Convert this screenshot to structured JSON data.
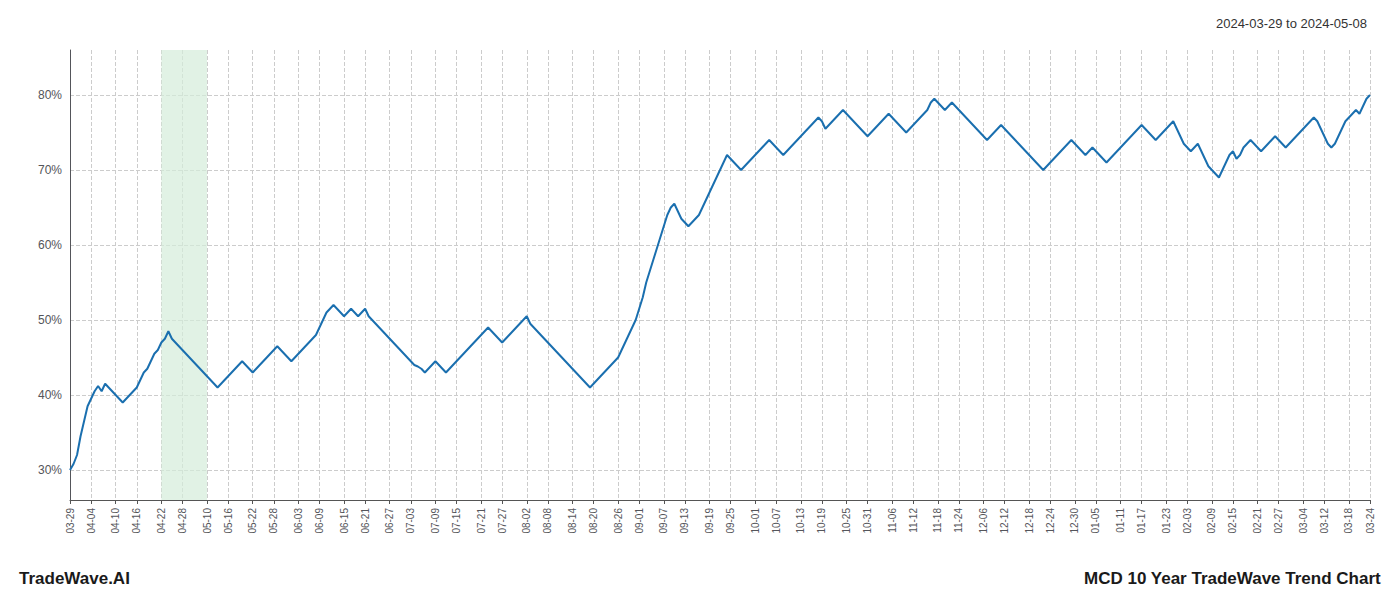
{
  "chart_data": {
    "type": "line",
    "title": "MCD 10 Year TradeWave Trend Chart",
    "subtitle": "2024-03-29 to 2024-05-08",
    "annotations": [
      "TradeWave.AI"
    ],
    "color": "#1a6faf",
    "grid": true,
    "highlight": {
      "start": "04-22",
      "end": "05-10",
      "color": "#d4edda"
    },
    "ylim": [
      26,
      86
    ],
    "yticks": [
      {
        "value": 30,
        "label": "30%"
      },
      {
        "value": 40,
        "label": "40%"
      },
      {
        "value": 50,
        "label": "50%"
      },
      {
        "value": 60,
        "label": "60%"
      },
      {
        "value": 70,
        "label": "70%"
      },
      {
        "value": 80,
        "label": "80%"
      }
    ],
    "categories": [
      "03-29",
      null,
      null,
      null,
      null,
      null,
      "04-04",
      null,
      null,
      null,
      null,
      null,
      null,
      "04-10",
      null,
      null,
      null,
      null,
      null,
      "04-16",
      null,
      null,
      null,
      null,
      null,
      null,
      "04-22",
      null,
      null,
      null,
      null,
      null,
      "04-28",
      null,
      null,
      null,
      null,
      null,
      null,
      "05-10",
      null,
      null,
      null,
      null,
      null,
      "05-16",
      null,
      null,
      null,
      null,
      null,
      null,
      "05-22",
      null,
      null,
      null,
      null,
      null,
      "05-28",
      null,
      null,
      null,
      null,
      null,
      null,
      "06-03",
      null,
      null,
      null,
      null,
      null,
      "06-09",
      null,
      null,
      null,
      null,
      null,
      null,
      "06-15",
      null,
      null,
      null,
      null,
      null,
      "06-21",
      null,
      null,
      null,
      null,
      null,
      null,
      "06-27",
      null,
      null,
      null,
      null,
      null,
      "07-03",
      null,
      null,
      null,
      null,
      null,
      null,
      "07-09",
      null,
      null,
      null,
      null,
      null,
      "07-15",
      null,
      null,
      null,
      null,
      null,
      null,
      "07-21",
      null,
      null,
      null,
      null,
      null,
      "07-27",
      null,
      null,
      null,
      null,
      null,
      null,
      "08-02",
      null,
      null,
      null,
      null,
      null,
      "08-08",
      null,
      null,
      null,
      null,
      null,
      null,
      "08-14",
      null,
      null,
      null,
      null,
      null,
      "08-20",
      null,
      null,
      null,
      null,
      null,
      null,
      "08-26",
      null,
      null,
      null,
      null,
      null,
      "09-01",
      null,
      null,
      null,
      null,
      null,
      null,
      "09-07",
      null,
      null,
      null,
      null,
      null,
      "09-13",
      null,
      null,
      null,
      null,
      null,
      null,
      "09-19",
      null,
      null,
      null,
      null,
      null,
      "09-25",
      null,
      null,
      null,
      null,
      null,
      null,
      "10-01",
      null,
      null,
      null,
      null,
      null,
      "10-07",
      null,
      null,
      null,
      null,
      null,
      null,
      "10-13",
      null,
      null,
      null,
      null,
      null,
      "10-19",
      null,
      null,
      null,
      null,
      null,
      null,
      "10-25",
      null,
      null,
      null,
      null,
      null,
      "10-31",
      null,
      null,
      null,
      null,
      null,
      null,
      "11-06",
      null,
      null,
      null,
      null,
      null,
      "11-12",
      null,
      null,
      null,
      null,
      null,
      null,
      "11-18",
      null,
      null,
      null,
      null,
      null,
      "11-24",
      null,
      null,
      null,
      null,
      null,
      null,
      "12-06",
      null,
      null,
      null,
      null,
      null,
      "12-12",
      null,
      null,
      null,
      null,
      null,
      null,
      "12-18",
      null,
      null,
      null,
      null,
      null,
      "12-24",
      null,
      null,
      null,
      null,
      null,
      null,
      "12-30",
      null,
      null,
      null,
      null,
      null,
      "01-05",
      null,
      null,
      null,
      null,
      null,
      null,
      "01-11",
      null,
      null,
      null,
      null,
      null,
      "01-17",
      null,
      null,
      null,
      null,
      null,
      null,
      "01-23",
      null,
      null,
      null,
      null,
      null,
      "02-03",
      null,
      null,
      null,
      null,
      null,
      null,
      "02-09",
      null,
      null,
      null,
      null,
      null,
      "02-15",
      null,
      null,
      null,
      null,
      null,
      null,
      "02-21",
      null,
      null,
      null,
      null,
      null,
      "02-27",
      null,
      null,
      null,
      null,
      null,
      null,
      "03-04",
      null,
      null,
      null,
      null,
      null,
      "03-12",
      null,
      null,
      null,
      null,
      null,
      null,
      "03-18",
      null,
      null,
      null,
      null,
      null,
      "03-24"
    ],
    "values": [
      30.0,
      30.8,
      32.0,
      34.5,
      36.5,
      38.5,
      39.5,
      40.5,
      41.2,
      40.5,
      41.5,
      41.0,
      40.5,
      40.0,
      39.5,
      39.0,
      39.5,
      40.0,
      40.5,
      41.0,
      42.0,
      43.0,
      43.5,
      44.5,
      45.5,
      46.0,
      47.0,
      47.5,
      48.5,
      47.5,
      47.0,
      46.5,
      46.0,
      45.5,
      45.0,
      44.5,
      44.0,
      43.5,
      43.0,
      42.5,
      42.0,
      41.5,
      41.0,
      41.5,
      42.0,
      42.5,
      43.0,
      43.5,
      44.0,
      44.5,
      44.0,
      43.5,
      43.0,
      43.5,
      44.0,
      44.5,
      45.0,
      45.5,
      46.0,
      46.5,
      46.0,
      45.5,
      45.0,
      44.5,
      45.0,
      45.5,
      46.0,
      46.5,
      47.0,
      47.5,
      48.0,
      49.0,
      50.0,
      51.0,
      51.5,
      52.0,
      51.5,
      51.0,
      50.5,
      51.0,
      51.5,
      51.0,
      50.5,
      51.0,
      51.5,
      50.5,
      50.0,
      49.5,
      49.0,
      48.5,
      48.0,
      47.5,
      47.0,
      46.5,
      46.0,
      45.5,
      45.0,
      44.5,
      44.0,
      43.8,
      43.5,
      43.0,
      43.5,
      44.0,
      44.5,
      44.0,
      43.5,
      43.0,
      43.5,
      44.0,
      44.5,
      45.0,
      45.5,
      46.0,
      46.5,
      47.0,
      47.5,
      48.0,
      48.5,
      49.0,
      48.5,
      48.0,
      47.5,
      47.0,
      47.5,
      48.0,
      48.5,
      49.0,
      49.5,
      50.0,
      50.5,
      49.5,
      49.0,
      48.5,
      48.0,
      47.5,
      47.0,
      46.5,
      46.0,
      45.5,
      45.0,
      44.5,
      44.0,
      43.5,
      43.0,
      42.5,
      42.0,
      41.5,
      41.0,
      41.5,
      42.0,
      42.5,
      43.0,
      43.5,
      44.0,
      44.5,
      45.0,
      46.0,
      47.0,
      48.0,
      49.0,
      50.0,
      51.5,
      53.0,
      55.0,
      56.5,
      58.0,
      59.5,
      61.0,
      62.5,
      64.0,
      65.0,
      65.5,
      64.5,
      63.5,
      63.0,
      62.5,
      63.0,
      63.5,
      64.0,
      65.0,
      66.0,
      67.0,
      68.0,
      69.0,
      70.0,
      71.0,
      72.0,
      71.5,
      71.0,
      70.5,
      70.0,
      70.5,
      71.0,
      71.5,
      72.0,
      72.5,
      73.0,
      73.5,
      74.0,
      73.5,
      73.0,
      72.5,
      72.0,
      72.5,
      73.0,
      73.5,
      74.0,
      74.5,
      75.0,
      75.5,
      76.0,
      76.5,
      77.0,
      76.5,
      75.5,
      76.0,
      76.5,
      77.0,
      77.5,
      78.0,
      77.5,
      77.0,
      76.5,
      76.0,
      75.5,
      75.0,
      74.5,
      75.0,
      75.5,
      76.0,
      76.5,
      77.0,
      77.5,
      77.0,
      76.5,
      76.0,
      75.5,
      75.0,
      75.5,
      76.0,
      76.5,
      77.0,
      77.5,
      78.0,
      79.0,
      79.5,
      79.0,
      78.5,
      78.0,
      78.5,
      79.0,
      78.5,
      78.0,
      77.5,
      77.0,
      76.5,
      76.0,
      75.5,
      75.0,
      74.5,
      74.0,
      74.5,
      75.0,
      75.5,
      76.0,
      75.5,
      75.0,
      74.5,
      74.0,
      73.5,
      73.0,
      72.5,
      72.0,
      71.5,
      71.0,
      70.5,
      70.0,
      70.5,
      71.0,
      71.5,
      72.0,
      72.5,
      73.0,
      73.5,
      74.0,
      73.5,
      73.0,
      72.5,
      72.0,
      72.5,
      73.0,
      72.5,
      72.0,
      71.5,
      71.0,
      71.5,
      72.0,
      72.5,
      73.0,
      73.5,
      74.0,
      74.5,
      75.0,
      75.5,
      76.0,
      75.5,
      75.0,
      74.5,
      74.0,
      74.5,
      75.0,
      75.5,
      76.0,
      76.5,
      75.5,
      74.5,
      73.5,
      73.0,
      72.5,
      73.0,
      73.5,
      72.5,
      71.5,
      70.5,
      70.0,
      69.5,
      69.0,
      70.0,
      71.0,
      72.0,
      72.5,
      71.5,
      72.0,
      73.0,
      73.5,
      74.0,
      73.5,
      73.0,
      72.5,
      73.0,
      73.5,
      74.0,
      74.5,
      74.0,
      73.5,
      73.0,
      73.5,
      74.0,
      74.5,
      75.0,
      75.5,
      76.0,
      76.5,
      77.0,
      76.5,
      75.5,
      74.5,
      73.5,
      73.0,
      73.5,
      74.5,
      75.5,
      76.5,
      77.0,
      77.5,
      78.0,
      77.5,
      78.5,
      79.5,
      80.0
    ]
  }
}
